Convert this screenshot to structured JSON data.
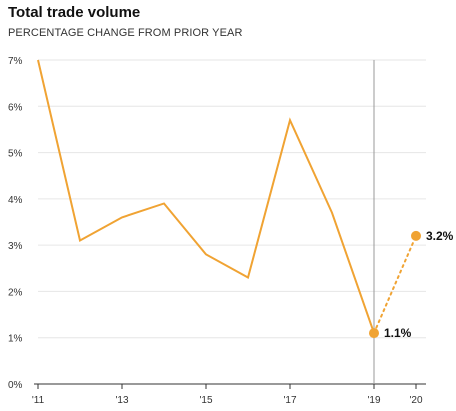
{
  "header": {
    "title": "Total trade volume",
    "subtitle": "PERCENTAGE CHANGE FROM PRIOR YEAR"
  },
  "colors": {
    "line": "#F0A333",
    "point": "#F0A333",
    "grid": "#E6E6E6",
    "axis": "#333333",
    "marker_line": "#999999"
  },
  "chart_data": {
    "type": "line",
    "title": "Total trade volume",
    "subtitle": "PERCENTAGE CHANGE FROM PRIOR YEAR",
    "xlabel": "",
    "ylabel": "",
    "xlim": [
      2011,
      2020
    ],
    "ylim": [
      0,
      7
    ],
    "grid": "horizontal",
    "y_ticks": [
      0,
      1,
      2,
      3,
      4,
      5,
      6,
      7
    ],
    "y_tick_labels": [
      "0%",
      "1%",
      "2%",
      "3%",
      "4%",
      "5%",
      "6%",
      "7%"
    ],
    "x_ticks": [
      2011,
      2013,
      2015,
      2017,
      2019,
      2020
    ],
    "x_tick_labels": [
      "'11",
      "'13",
      "'15",
      "'17",
      "'19",
      "'20"
    ],
    "series": [
      {
        "style": "solid",
        "x": [
          2011,
          2012,
          2013,
          2014,
          2015,
          2016,
          2017,
          2018,
          2019
        ],
        "values": [
          7.0,
          3.1,
          3.6,
          3.9,
          2.8,
          2.3,
          5.7,
          3.7,
          1.1
        ]
      },
      {
        "style": "dotted",
        "x": [
          2019,
          2020
        ],
        "values": [
          1.1,
          3.2
        ]
      }
    ],
    "reference_line_x": 2019,
    "annotations": [
      {
        "x": 2019,
        "y": 1.1,
        "text": "1.1%"
      },
      {
        "x": 2020,
        "y": 3.2,
        "text": "3.2%"
      }
    ]
  }
}
